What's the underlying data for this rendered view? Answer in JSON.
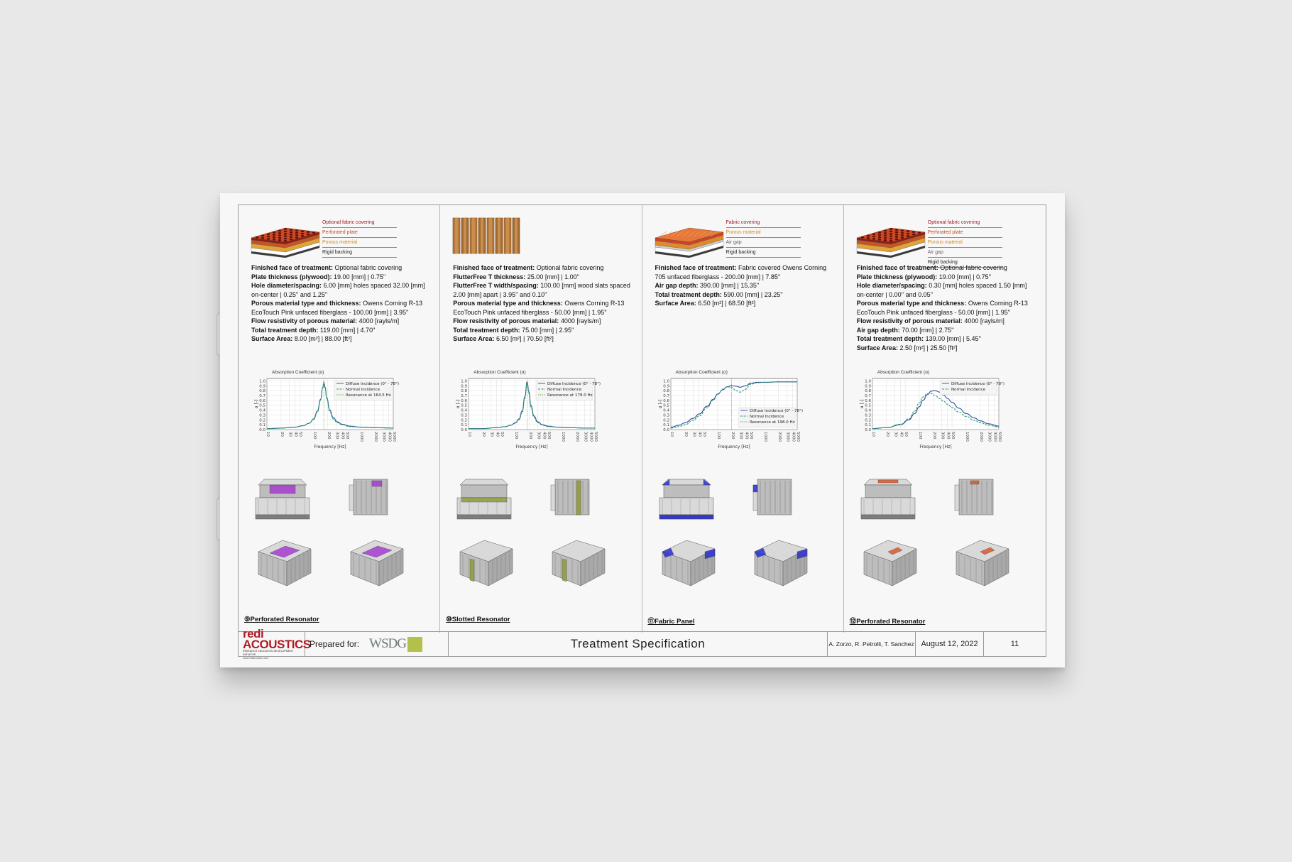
{
  "document": {
    "footer": {
      "logo": "redi ACOUSTICS",
      "logo_sub": "RESEARCH EDUCATION DEVELOPMENT INITIATIVE",
      "logo_url": "www.rediacoustics.com",
      "prepared_for_label": "Prepared for:",
      "client_logo": "WSDG",
      "title": "Treatment Specification",
      "authors": "A. Zorzo, R. Petrolli, T. Sanchez",
      "date": "August 12, 2022",
      "page": "11"
    },
    "chart_common": {
      "title": "Absorption Coefficient (α)",
      "xlabel": "Frequency [Hz]",
      "ylabel": "α [-]",
      "y_ticks": [
        "0.0",
        "0.1",
        "0.2",
        "0.3",
        "0.4",
        "0.5",
        "0.6",
        "0.7",
        "0.8",
        "0.9",
        "1.0"
      ],
      "x_ticks": [
        "10",
        "20",
        "30",
        "40",
        "50",
        "100",
        "200",
        "300",
        "400",
        "500",
        "1000",
        "2000",
        "3000",
        "4000",
        "5000"
      ]
    },
    "columns": [
      {
        "legend": [
          "Optional fabric covering",
          "Perforated plate",
          "Porous material",
          "Rigid backing"
        ],
        "legend_colors": [
          "#a3181f",
          "#b8501f",
          "#d88a1e",
          "#222222"
        ],
        "graphic": "perforated",
        "specs": [
          {
            "label": "Finished face of treatment:",
            "value": "Optional fabric covering"
          },
          {
            "label": "Plate thickness (plywood):",
            "value": "19.00 [mm] | 0.75''"
          },
          {
            "label": "Hole diameter/spacing:",
            "value": "6.00 [mm] holes spaced 32.00 [mm] on-center | 0.25'' and 1.25''"
          },
          {
            "label": "Porous material type and thickness:",
            "value": "Owens Corning R-13 EcoTouch Pink unfaced fiberglass - 100.00 [mm] | 3.95''"
          },
          {
            "label": "Flow resistivity of porous material:",
            "value": "4000 [rayls/m]"
          },
          {
            "label": "Total treatment depth:",
            "value": "119.00 [mm] | 4.70''"
          },
          {
            "label": "Surface Area:",
            "value": "8.00 [m²] | 88.00 [ft²]"
          }
        ],
        "caption_num": "⑨",
        "caption": "Perforated Resonator",
        "accent": "#a63cd0",
        "chart_legend": [
          "Diffuse Incidence (0° - 78°)",
          "Normal Incidence",
          "Resonance at 164.5 Hz"
        ],
        "legend_pos": "top-right"
      },
      {
        "legend": [],
        "legend_colors": [],
        "graphic": "slotted",
        "specs": [
          {
            "label": "Finished face of treatment:",
            "value": "Optional fabric covering"
          },
          {
            "label": "FlutterFree T thickness:",
            "value": "25.00 [mm] | 1.00''"
          },
          {
            "label": "FlutterFree T width/spacing:",
            "value": "100.00 [mm] wood slats spaced 2.00 [mm] apart | 3.95'' and 0.10''"
          },
          {
            "label": "Porous material type and thickness:",
            "value": "Owens Corning R-13 EcoTouch Pink unfaced fiberglass - 50.00 [mm] | 1.95''"
          },
          {
            "label": "Flow resistivity of porous material:",
            "value": "4000 [rayls/m]"
          },
          {
            "label": "Total treatment depth:",
            "value": "75.00 [mm] | 2.95''"
          },
          {
            "label": "Surface Area:",
            "value": "6.50 [m²] | 70.50 [ft²]"
          }
        ],
        "caption_num": "⑩",
        "caption": "Slotted Resonator",
        "accent": "#8f9a3a",
        "chart_legend": [
          "Diffuse Incidence (0° - 78°)",
          "Normal Incidence",
          "Resonance at 178.0 Hz"
        ],
        "legend_pos": "top-right"
      },
      {
        "legend": [
          "Fabric covering",
          "Porous material",
          "Air gap",
          "Rigid backing"
        ],
        "legend_colors": [
          "#a3181f",
          "#d88a1e",
          "#666666",
          "#222222"
        ],
        "graphic": "fabric",
        "specs": [
          {
            "label": "Finished face of treatment:",
            "value": "Fabric covered Owens Corning 705 unfaced fiberglass - 200.00 [mm] | 7.85''"
          },
          {
            "label": "Air gap depth:",
            "value": "390.00 [mm] | 15.35''"
          },
          {
            "label": "Total treatment depth:",
            "value": "590.00 [mm] | 23.25''"
          },
          {
            "label": "Surface Area:",
            "value": "6.50 [m²] | 68.50 [ft²]"
          }
        ],
        "caption_num": "⑪",
        "caption": "Fabric Panel",
        "accent": "#2a2fd0",
        "chart_legend": [
          "Diffuse Incidence (0° - 78°)",
          "Normal Incidence",
          "Resonance at 198.0 Hz"
        ],
        "legend_pos": "bottom-right"
      },
      {
        "legend": [
          "Optional fabric covering",
          "Perforated plate",
          "Porous material",
          "Air gap",
          "Rigid backing"
        ],
        "legend_colors": [
          "#a3181f",
          "#b8501f",
          "#d88a1e",
          "#666666",
          "#222222"
        ],
        "graphic": "perforated",
        "specs": [
          {
            "label": "Finished face of treatment:",
            "value": "Optional fabric covering"
          },
          {
            "label": "Plate thickness (plywood):",
            "value": "19.00 [mm] | 0.75''"
          },
          {
            "label": "Hole diameter/spacing:",
            "value": "0.30 [mm] holes spaced 1.50 [mm] on-center | 0.00'' and 0.05''"
          },
          {
            "label": "Porous material type and thickness:",
            "value": "Owens Corning R-13 EcoTouch Pink unfaced fiberglass - 50.00 [mm] | 1.95''"
          },
          {
            "label": "Flow resistivity of porous material:",
            "value": "4000 [rayls/m]"
          },
          {
            "label": "Air gap depth:",
            "value": "70.00 [mm] | 2.75''"
          },
          {
            "label": "Total treatment depth:",
            "value": "139.00 [mm] | 5.45''"
          },
          {
            "label": "Surface Area:",
            "value": "2.50 [m²] | 25.50 [ft²]"
          }
        ],
        "caption_num": "⑫",
        "caption": "Perforated Resonator",
        "accent": "#d9582a",
        "chart_legend": [
          "Diffuse Incidence (0° - 78°)",
          "Normal Incidence"
        ],
        "legend_pos": "top-right"
      }
    ]
  },
  "chart_data": [
    {
      "type": "line",
      "title": "Absorption Coefficient (α)",
      "xlabel": "Frequency [Hz]",
      "ylabel": "α [-]",
      "xscale": "log",
      "xlim": [
        10,
        5000
      ],
      "ylim": [
        0,
        1.05
      ],
      "grid": true,
      "legend": "top-right",
      "x": [
        10,
        20,
        40,
        60,
        80,
        100,
        120,
        140,
        155,
        164.5,
        175,
        190,
        220,
        260,
        320,
        400,
        600,
        1000,
        2000,
        5000
      ],
      "series": [
        {
          "name": "Diffuse Incidence (0° - 78°)",
          "values": [
            0.02,
            0.03,
            0.05,
            0.08,
            0.13,
            0.22,
            0.38,
            0.62,
            0.85,
            0.95,
            0.86,
            0.65,
            0.4,
            0.25,
            0.16,
            0.11,
            0.07,
            0.05,
            0.04,
            0.03
          ]
        },
        {
          "name": "Normal Incidence",
          "values": [
            0.02,
            0.03,
            0.05,
            0.08,
            0.13,
            0.21,
            0.36,
            0.6,
            0.86,
            0.98,
            0.88,
            0.63,
            0.37,
            0.22,
            0.14,
            0.1,
            0.06,
            0.05,
            0.04,
            0.03
          ]
        }
      ],
      "vline": 164.5
    },
    {
      "type": "line",
      "title": "Absorption Coefficient (α)",
      "xlabel": "Frequency [Hz]",
      "ylabel": "α [-]",
      "xscale": "log",
      "xlim": [
        10,
        5000
      ],
      "ylim": [
        0,
        1.05
      ],
      "grid": true,
      "legend": "top-right",
      "x": [
        10,
        20,
        40,
        60,
        80,
        100,
        120,
        140,
        160,
        178,
        195,
        215,
        250,
        300,
        380,
        500,
        800,
        1500,
        3000,
        5000
      ],
      "series": [
        {
          "name": "Diffuse Incidence (0° - 78°)",
          "values": [
            0.02,
            0.02,
            0.04,
            0.06,
            0.09,
            0.14,
            0.22,
            0.38,
            0.68,
            0.98,
            0.78,
            0.5,
            0.28,
            0.16,
            0.1,
            0.07,
            0.05,
            0.04,
            0.03,
            0.03
          ]
        },
        {
          "name": "Normal Incidence",
          "values": [
            0.02,
            0.02,
            0.04,
            0.06,
            0.09,
            0.13,
            0.2,
            0.35,
            0.64,
            0.96,
            0.74,
            0.46,
            0.25,
            0.14,
            0.09,
            0.06,
            0.05,
            0.04,
            0.03,
            0.03
          ]
        }
      ],
      "vline": 178.0
    },
    {
      "type": "line",
      "title": "Absorption Coefficient (α)",
      "xlabel": "Frequency [Hz]",
      "ylabel": "α [-]",
      "xscale": "log",
      "xlim": [
        10,
        5000
      ],
      "ylim": [
        0,
        1.05
      ],
      "grid": true,
      "legend": "bottom-right",
      "x": [
        10,
        15,
        20,
        30,
        40,
        60,
        80,
        100,
        130,
        160,
        198,
        250,
        300,
        400,
        500,
        700,
        1000,
        2000,
        5000
      ],
      "series": [
        {
          "name": "Diffuse Incidence (0° - 78°)",
          "values": [
            0.05,
            0.09,
            0.14,
            0.23,
            0.32,
            0.48,
            0.62,
            0.73,
            0.82,
            0.88,
            0.9,
            0.89,
            0.87,
            0.9,
            0.95,
            0.97,
            0.97,
            0.98,
            0.98
          ]
        },
        {
          "name": "Normal Incidence",
          "values": [
            0.03,
            0.06,
            0.1,
            0.19,
            0.28,
            0.45,
            0.6,
            0.72,
            0.83,
            0.88,
            0.86,
            0.8,
            0.77,
            0.83,
            0.93,
            0.96,
            0.97,
            0.98,
            0.98
          ]
        }
      ],
      "vline": 198.0
    },
    {
      "type": "line",
      "title": "Absorption Coefficient (α)",
      "xlabel": "Frequency [Hz]",
      "ylabel": "α [-]",
      "xscale": "log",
      "xlim": [
        10,
        5000
      ],
      "ylim": [
        0,
        1.05
      ],
      "grid": true,
      "legend": "top-right",
      "x": [
        10,
        20,
        40,
        60,
        80,
        100,
        120,
        150,
        180,
        220,
        270,
        330,
        400,
        500,
        700,
        1000,
        1500,
        2000,
        3000,
        5000
      ],
      "series": [
        {
          "name": "Diffuse Incidence (0° - 78°)",
          "values": [
            0.02,
            0.04,
            0.1,
            0.2,
            0.33,
            0.47,
            0.6,
            0.72,
            0.79,
            0.8,
            0.77,
            0.71,
            0.64,
            0.56,
            0.44,
            0.33,
            0.24,
            0.18,
            0.12,
            0.07
          ]
        },
        {
          "name": "Normal Incidence",
          "values": [
            0.02,
            0.04,
            0.11,
            0.22,
            0.38,
            0.55,
            0.67,
            0.74,
            0.74,
            0.7,
            0.64,
            0.58,
            0.52,
            0.45,
            0.36,
            0.27,
            0.19,
            0.14,
            0.09,
            0.05
          ]
        }
      ]
    }
  ]
}
